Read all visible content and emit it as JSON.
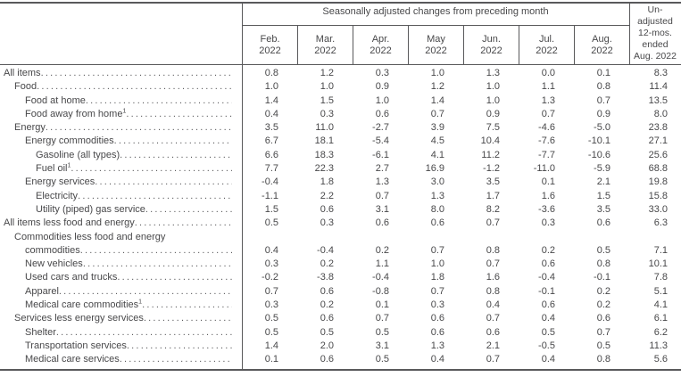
{
  "header": {
    "group_title": "Seasonally adjusted changes from preceding month",
    "months": [
      {
        "abbr": "Feb.",
        "year": "2022"
      },
      {
        "abbr": "Mar.",
        "year": "2022"
      },
      {
        "abbr": "Apr.",
        "year": "2022"
      },
      {
        "abbr": "May",
        "year": "2022"
      },
      {
        "abbr": "Jun.",
        "year": "2022"
      },
      {
        "abbr": "Jul.",
        "year": "2022"
      },
      {
        "abbr": "Aug.",
        "year": "2022"
      }
    ],
    "unadjusted_lines": [
      "Un-",
      "adjusted",
      "12-mos.",
      "ended",
      "Aug. 2022"
    ]
  },
  "rows": [
    {
      "label": "All items",
      "indent": 0,
      "values": [
        "0.8",
        "1.2",
        "0.3",
        "1.0",
        "1.3",
        "0.0",
        "0.1",
        "8.3"
      ]
    },
    {
      "label": "Food",
      "indent": 1,
      "values": [
        "1.0",
        "1.0",
        "0.9",
        "1.2",
        "1.0",
        "1.1",
        "0.8",
        "11.4"
      ]
    },
    {
      "label": "Food at home",
      "indent": 2,
      "values": [
        "1.4",
        "1.5",
        "1.0",
        "1.4",
        "1.0",
        "1.3",
        "0.7",
        "13.5"
      ]
    },
    {
      "label": "Food away from home",
      "sup": "1",
      "indent": 2,
      "values": [
        "0.4",
        "0.3",
        "0.6",
        "0.7",
        "0.9",
        "0.7",
        "0.9",
        "8.0"
      ]
    },
    {
      "label": "Energy",
      "indent": 1,
      "values": [
        "3.5",
        "11.0",
        "-2.7",
        "3.9",
        "7.5",
        "-4.6",
        "-5.0",
        "23.8"
      ]
    },
    {
      "label": "Energy commodities",
      "indent": 2,
      "values": [
        "6.7",
        "18.1",
        "-5.4",
        "4.5",
        "10.4",
        "-7.6",
        "-10.1",
        "27.1"
      ]
    },
    {
      "label": "Gasoline (all types)",
      "indent": 3,
      "values": [
        "6.6",
        "18.3",
        "-6.1",
        "4.1",
        "11.2",
        "-7.7",
        "-10.6",
        "25.6"
      ]
    },
    {
      "label": "Fuel oil",
      "sup": "1",
      "indent": 3,
      "values": [
        "7.7",
        "22.3",
        "2.7",
        "16.9",
        "-1.2",
        "-11.0",
        "-5.9",
        "68.8"
      ]
    },
    {
      "label": "Energy services",
      "indent": 2,
      "values": [
        "-0.4",
        "1.8",
        "1.3",
        "3.0",
        "3.5",
        "0.1",
        "2.1",
        "19.8"
      ]
    },
    {
      "label": "Electricity",
      "indent": 3,
      "values": [
        "-1.1",
        "2.2",
        "0.7",
        "1.3",
        "1.7",
        "1.6",
        "1.5",
        "15.8"
      ]
    },
    {
      "label": "Utility (piped) gas service",
      "indent": 3,
      "values": [
        "1.5",
        "0.6",
        "3.1",
        "8.0",
        "8.2",
        "-3.6",
        "3.5",
        "33.0"
      ]
    },
    {
      "label": "All items less food and energy",
      "indent": 0,
      "values": [
        "0.5",
        "0.3",
        "0.6",
        "0.6",
        "0.7",
        "0.3",
        "0.6",
        "6.3"
      ]
    },
    {
      "label": "Commodities less food and energy",
      "label2": "commodities",
      "indent": 1,
      "values": [
        "0.4",
        "-0.4",
        "0.2",
        "0.7",
        "0.8",
        "0.2",
        "0.5",
        "7.1"
      ]
    },
    {
      "label": "New vehicles",
      "indent": 2,
      "values": [
        "0.3",
        "0.2",
        "1.1",
        "1.0",
        "0.7",
        "0.6",
        "0.8",
        "10.1"
      ]
    },
    {
      "label": "Used cars and trucks",
      "indent": 2,
      "values": [
        "-0.2",
        "-3.8",
        "-0.4",
        "1.8",
        "1.6",
        "-0.4",
        "-0.1",
        "7.8"
      ]
    },
    {
      "label": "Apparel",
      "indent": 2,
      "values": [
        "0.7",
        "0.6",
        "-0.8",
        "0.7",
        "0.8",
        "-0.1",
        "0.2",
        "5.1"
      ]
    },
    {
      "label": "Medical care commodities",
      "sup": "1",
      "indent": 2,
      "values": [
        "0.3",
        "0.2",
        "0.1",
        "0.3",
        "0.4",
        "0.6",
        "0.2",
        "4.1"
      ]
    },
    {
      "label": "Services less energy services",
      "indent": 1,
      "values": [
        "0.5",
        "0.6",
        "0.7",
        "0.6",
        "0.7",
        "0.4",
        "0.6",
        "6.1"
      ]
    },
    {
      "label": "Shelter",
      "indent": 2,
      "values": [
        "0.5",
        "0.5",
        "0.5",
        "0.6",
        "0.6",
        "0.5",
        "0.7",
        "6.2"
      ]
    },
    {
      "label": "Transportation services",
      "indent": 2,
      "values": [
        "1.4",
        "2.0",
        "3.1",
        "1.3",
        "2.1",
        "-0.5",
        "0.5",
        "11.3"
      ]
    },
    {
      "label": "Medical care services",
      "indent": 2,
      "values": [
        "0.1",
        "0.6",
        "0.5",
        "0.4",
        "0.7",
        "0.4",
        "0.8",
        "5.6"
      ]
    }
  ]
}
